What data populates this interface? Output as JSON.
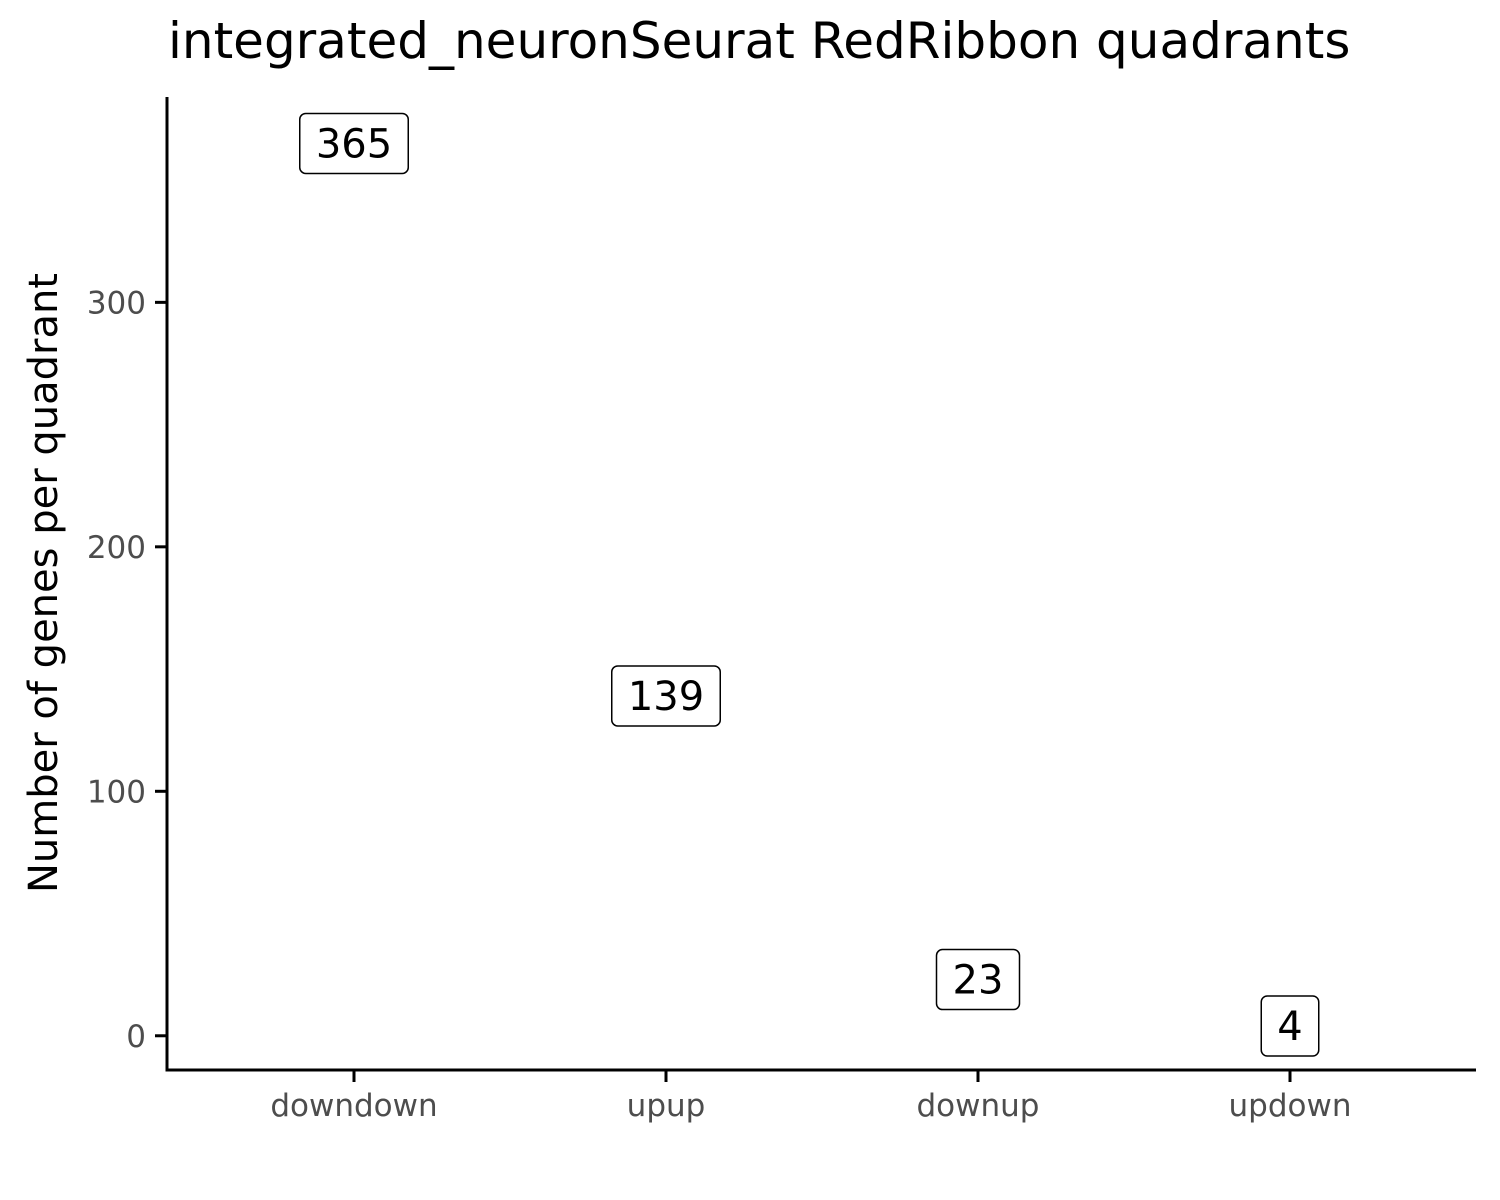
{
  "chart_data": {
    "type": "scatter",
    "title": "integrated_neuronSeurat RedRibbon quadrants",
    "xlabel": "",
    "ylabel": "Number of genes per quadrant",
    "categories": [
      "downdown",
      "upup",
      "downup",
      "updown"
    ],
    "values": [
      365,
      139,
      23,
      4
    ],
    "data_labels": [
      "365",
      "139",
      "23",
      "4"
    ],
    "yticks": [
      0,
      100,
      200,
      300
    ],
    "ytick_labels": [
      "0",
      "100",
      "200",
      "300"
    ],
    "ylim": [
      -14,
      384
    ],
    "grid": false,
    "legend": "none"
  }
}
